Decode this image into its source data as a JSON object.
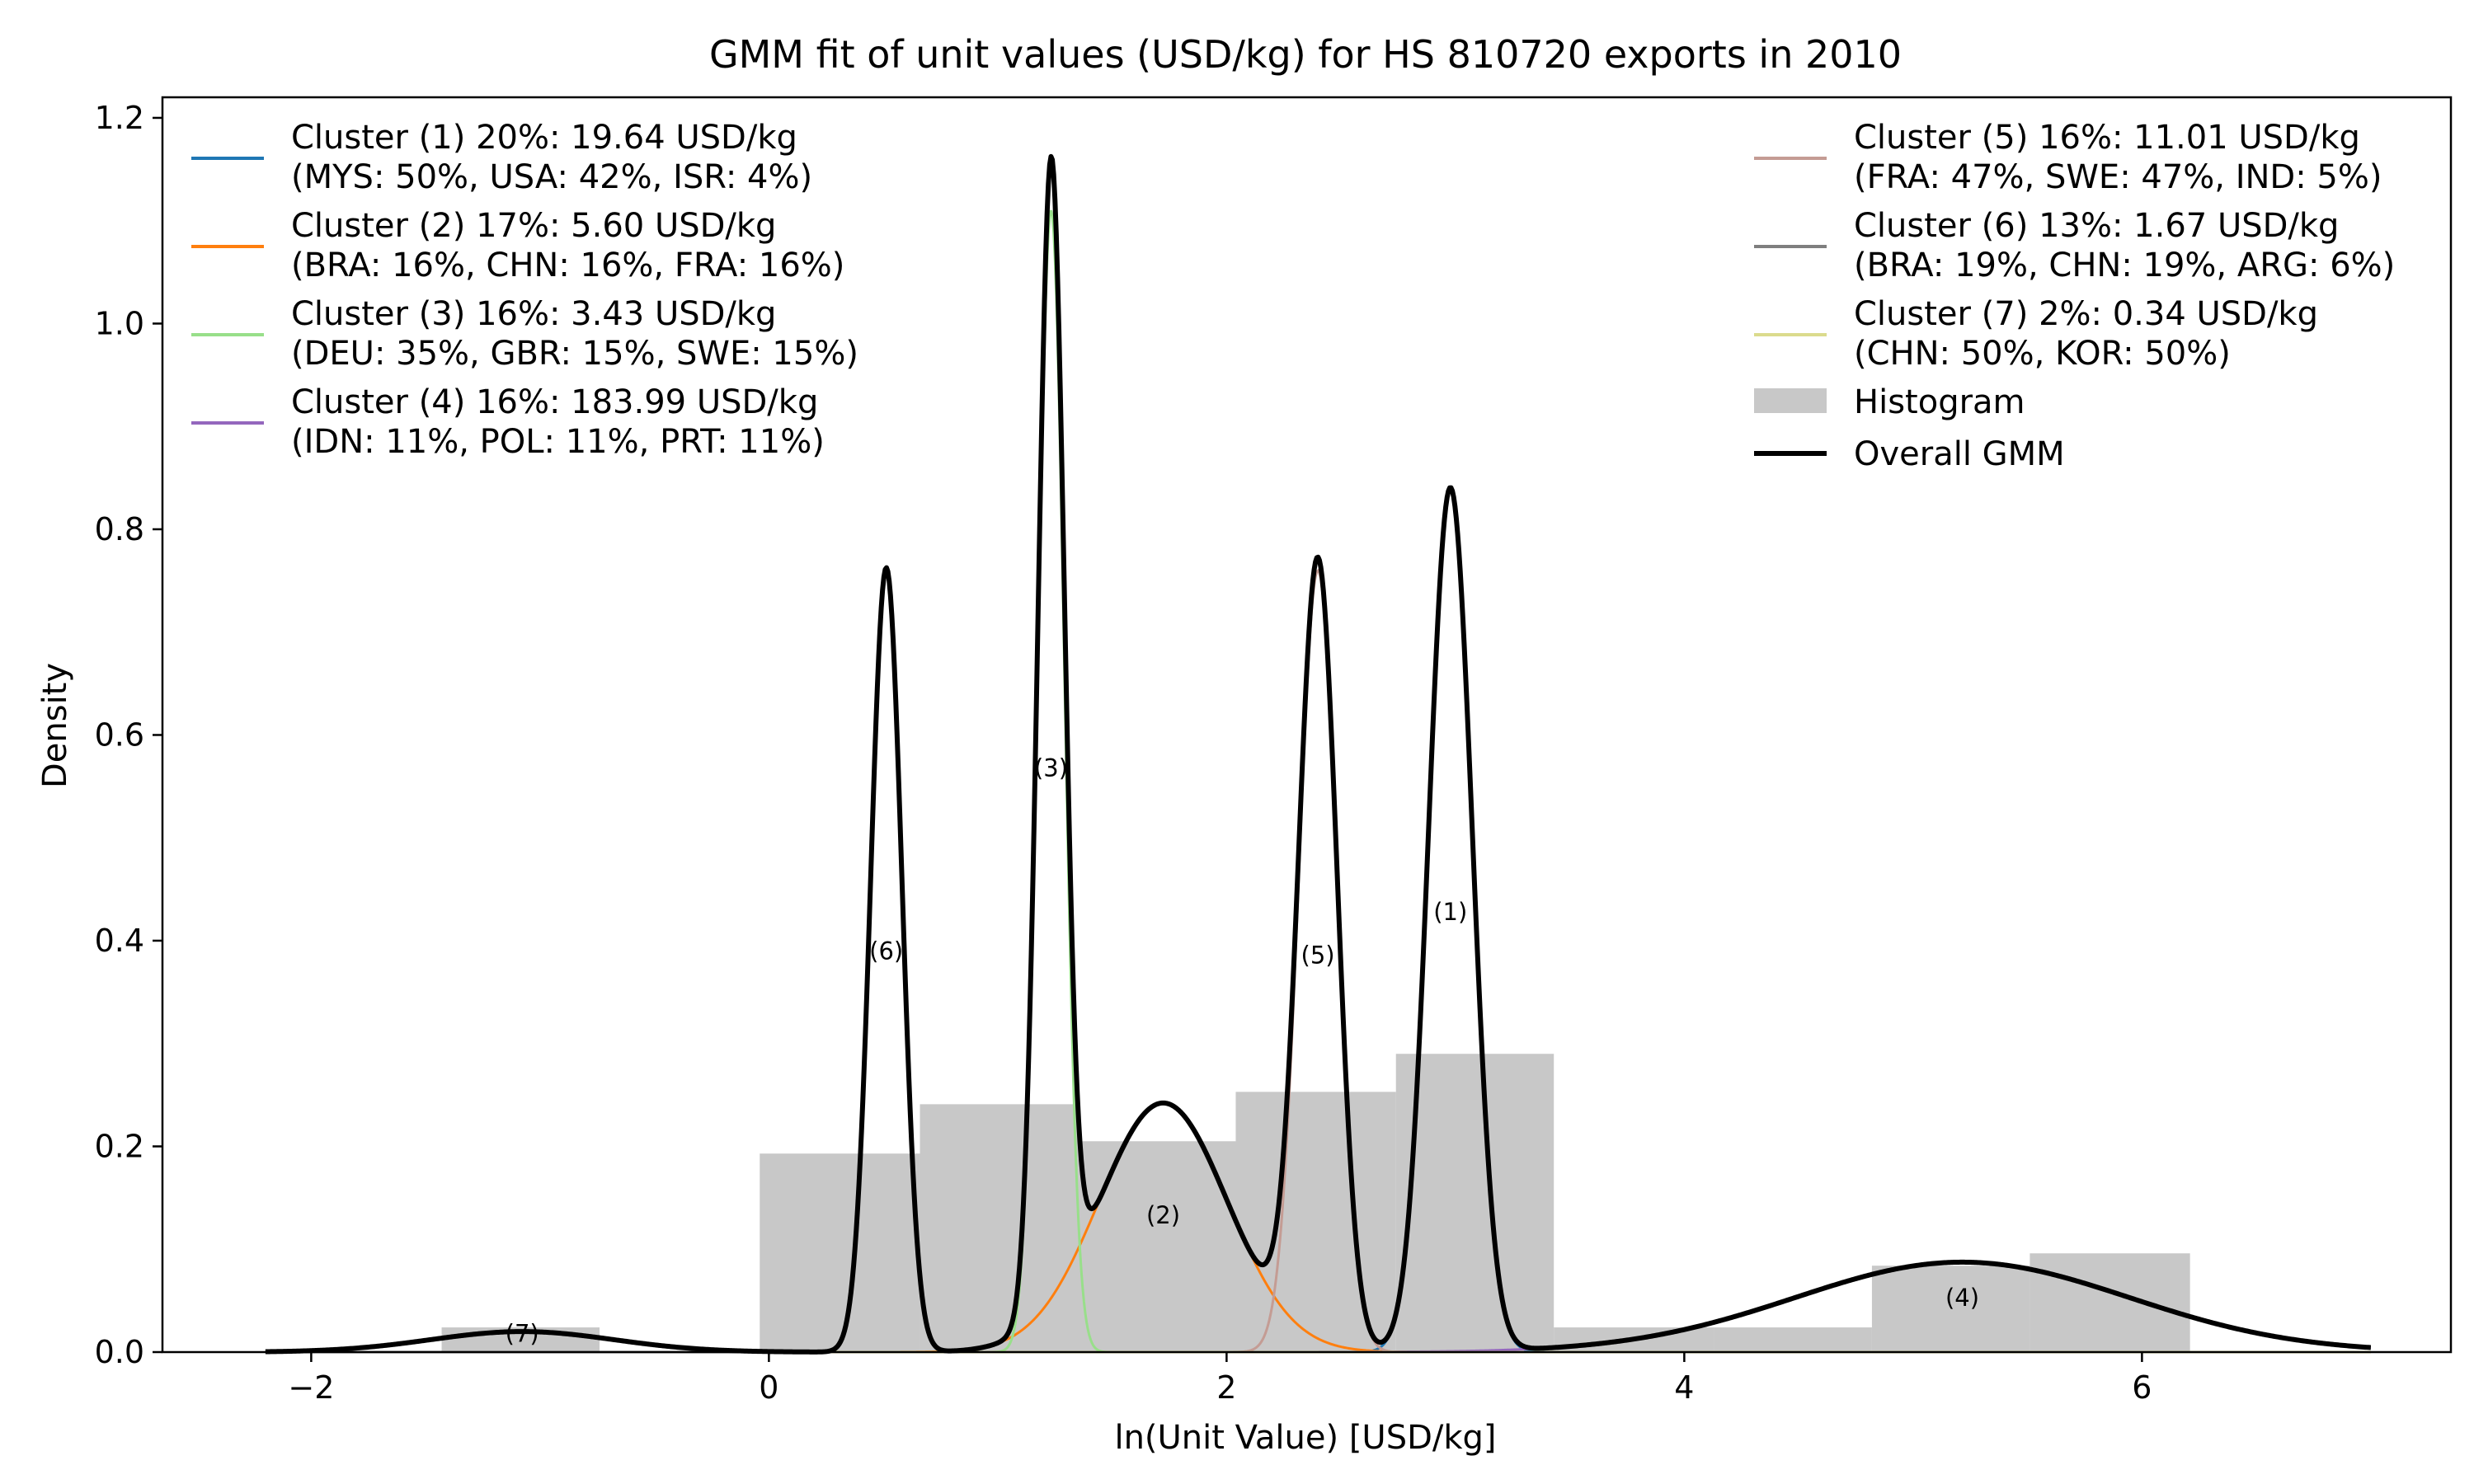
{
  "chart_data": {
    "type": "area",
    "title": "GMM fit of unit values (USD/kg) for HS 810720 exports in 2010",
    "xlabel": "ln(Unit Value) [USD/kg]",
    "ylabel": "Density",
    "xlim": [
      -2.65,
      7.35
    ],
    "ylim": [
      0,
      1.22
    ],
    "xticks": [
      -2,
      0,
      2,
      4,
      6
    ],
    "xtick_labels": [
      "−2",
      "0",
      "2",
      "4",
      "6"
    ],
    "yticks": [
      0.0,
      0.2,
      0.4,
      0.6,
      0.8,
      1.0,
      1.2
    ],
    "ytick_labels": [
      "0.0",
      "0.2",
      "0.4",
      "0.6",
      "0.8",
      "1.0",
      "1.2"
    ],
    "grid": false,
    "legend_placement": [
      "top-left",
      "top-right"
    ],
    "histogram": {
      "name": "Histogram",
      "color": "#c8c8c8",
      "bins": [
        {
          "x0": -1.43,
          "x1": -0.74,
          "density": 0.024
        },
        {
          "x0": -0.74,
          "x1": -0.04,
          "density": 0.0
        },
        {
          "x0": -0.04,
          "x1": 0.66,
          "density": 0.193
        },
        {
          "x0": 0.66,
          "x1": 1.35,
          "density": 0.241
        },
        {
          "x0": 1.35,
          "x1": 2.04,
          "density": 0.205
        },
        {
          "x0": 2.04,
          "x1": 2.74,
          "density": 0.253
        },
        {
          "x0": 2.74,
          "x1": 3.43,
          "density": 0.29
        },
        {
          "x0": 3.43,
          "x1": 4.13,
          "density": 0.024
        },
        {
          "x0": 4.13,
          "x1": 4.82,
          "density": 0.024
        },
        {
          "x0": 4.82,
          "x1": 5.51,
          "density": 0.084
        },
        {
          "x0": 5.51,
          "x1": 6.21,
          "density": 0.096
        }
      ]
    },
    "curve_x_range": [
      -2.2,
      7.0
    ],
    "clusters": [
      {
        "id": "(1)",
        "weight": 0.2,
        "mean": 2.978,
        "sd": 0.095,
        "color": "#1f77b4",
        "label_line1": "Cluster (1) 20%: 19.64 USD/kg",
        "label_line2": "(MYS: 50%, USA: 42%, ISR: 4%)",
        "marker_x": 2.978,
        "marker_y": 0.42
      },
      {
        "id": "(2)",
        "weight": 0.17,
        "mean": 1.723,
        "sd": 0.28,
        "color": "#ff7f0e",
        "label_line1": "Cluster (2) 17%: 5.60 USD/kg",
        "label_line2": "(BRA: 16%, CHN: 16%, FRA: 16%)",
        "marker_x": 1.723,
        "marker_y": 0.125
      },
      {
        "id": "(3)",
        "weight": 0.16,
        "mean": 1.233,
        "sd": 0.0575,
        "color": "#98df8a",
        "label_line1": "Cluster (3) 16%: 3.43 USD/kg",
        "label_line2": "(DEU: 35%, GBR: 15%, SWE: 15%)",
        "marker_x": 1.233,
        "marker_y": 0.56
      },
      {
        "id": "(4)",
        "weight": 0.16,
        "mean": 5.215,
        "sd": 0.73,
        "color": "#9467bd",
        "label_line1": "Cluster (4) 16%: 183.99 USD/kg",
        "label_line2": "(IDN: 11%, POL: 11%, PRT: 11%)",
        "marker_x": 5.215,
        "marker_y": 0.045
      },
      {
        "id": "(5)",
        "weight": 0.16,
        "mean": 2.399,
        "sd": 0.084,
        "color": "#c49c94",
        "label_line1": "Cluster (5) 16%: 11.01 USD/kg",
        "label_line2": "(FRA: 47%, SWE: 47%, IND: 5%)",
        "marker_x": 2.399,
        "marker_y": 0.378
      },
      {
        "id": "(6)",
        "weight": 0.13,
        "mean": 0.513,
        "sd": 0.068,
        "color": "#7f7f7f",
        "label_line1": "Cluster (6) 13%: 1.67 USD/kg",
        "label_line2": "(BRA: 19%, CHN: 19%, ARG: 6%)",
        "marker_x": 0.513,
        "marker_y": 0.382
      },
      {
        "id": "(7)",
        "weight": 0.02,
        "mean": -1.078,
        "sd": 0.4,
        "color": "#dbdb8d",
        "label_line1": "Cluster (7) 2%: 0.34 USD/kg",
        "label_line2": "(CHN: 50%, KOR: 50%)",
        "marker_x": -1.078,
        "marker_y": 0.01
      }
    ],
    "overall": {
      "name": "Overall GMM",
      "color": "#000000"
    }
  }
}
